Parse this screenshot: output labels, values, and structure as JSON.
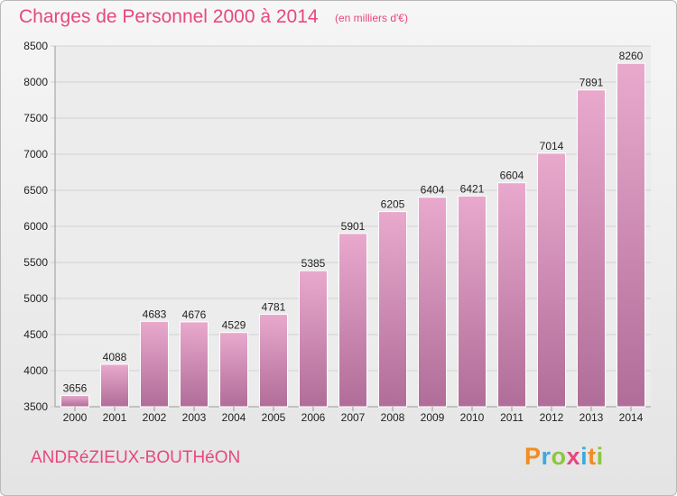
{
  "title": "Charges de Personnel 2000 à 2014",
  "subtitle": "(en milliers d'€)",
  "city": "ANDRéZIEUX-BOUTHéON",
  "logo": {
    "text": "Proxiti",
    "letters": [
      {
        "ch": "P",
        "color": "#f28c1e"
      },
      {
        "ch": "r",
        "color": "#3fa9dc"
      },
      {
        "ch": "o",
        "color": "#8cc63f"
      },
      {
        "ch": "x",
        "color": "#e8477f"
      },
      {
        "ch": "i",
        "color": "#3fa9dc"
      },
      {
        "ch": "t",
        "color": "#f28c1e"
      },
      {
        "ch": "i",
        "color": "#8cc63f"
      }
    ]
  },
  "colors": {
    "accent": "#e8477f",
    "bar_top": "#e9a9cd",
    "bar_bottom": "#b06d98",
    "grid": "#d2d2d2",
    "axis_text": "#222222"
  },
  "chart_data": {
    "type": "bar",
    "categories": [
      "2000",
      "2001",
      "2002",
      "2003",
      "2004",
      "2005",
      "2006",
      "2007",
      "2008",
      "2009",
      "2010",
      "2011",
      "2012",
      "2013",
      "2014"
    ],
    "values": [
      3656,
      4088,
      4683,
      4676,
      4529,
      4781,
      5385,
      5901,
      6205,
      6404,
      6421,
      6604,
      7014,
      7891,
      8260
    ],
    "ylim": [
      3500,
      8500
    ],
    "yticks": [
      3500,
      4000,
      4500,
      5000,
      5500,
      6000,
      6500,
      7000,
      7500,
      8000,
      8500
    ],
    "grid": true,
    "data_labels": true
  }
}
